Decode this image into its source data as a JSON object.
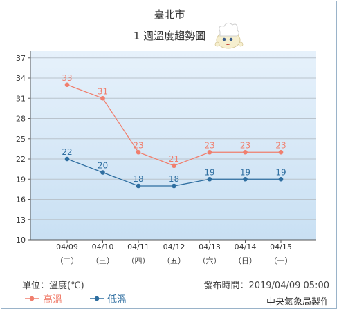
{
  "title": "臺北市",
  "subtitle": "1 週溫度趨勢圖",
  "mascot_icon": "weather-mascot-icon",
  "footer": {
    "unit": "單位：溫度(℃)",
    "published": "發布時間：2019/04/09 05:00",
    "agency": "中央氣象局製作"
  },
  "legend": {
    "high_label": "高溫",
    "low_label": "低溫"
  },
  "colors": {
    "high": "#f07f6e",
    "low": "#2e6ea0",
    "plot_bg_top": "#e6f1fb",
    "plot_bg_bottom": "#c9e0f3",
    "grid": "#b9c3cc"
  },
  "chart_data": {
    "type": "line",
    "categories": [
      "04/09",
      "04/10",
      "04/11",
      "04/12",
      "04/13",
      "04/14",
      "04/15"
    ],
    "weekdays": [
      "（二）",
      "（三）",
      "（四）",
      "（五）",
      "（六）",
      "（日）",
      "（一）"
    ],
    "series": [
      {
        "name": "高溫",
        "values": [
          33,
          31,
          23,
          21,
          23,
          23,
          23
        ]
      },
      {
        "name": "低溫",
        "values": [
          22,
          20,
          18,
          18,
          19,
          19,
          19
        ]
      }
    ],
    "yticks": [
      10,
      13,
      16,
      19,
      22,
      25,
      28,
      31,
      34,
      37
    ],
    "ylim": [
      10,
      38
    ],
    "grid": true,
    "legend_position": "bottom-left"
  }
}
